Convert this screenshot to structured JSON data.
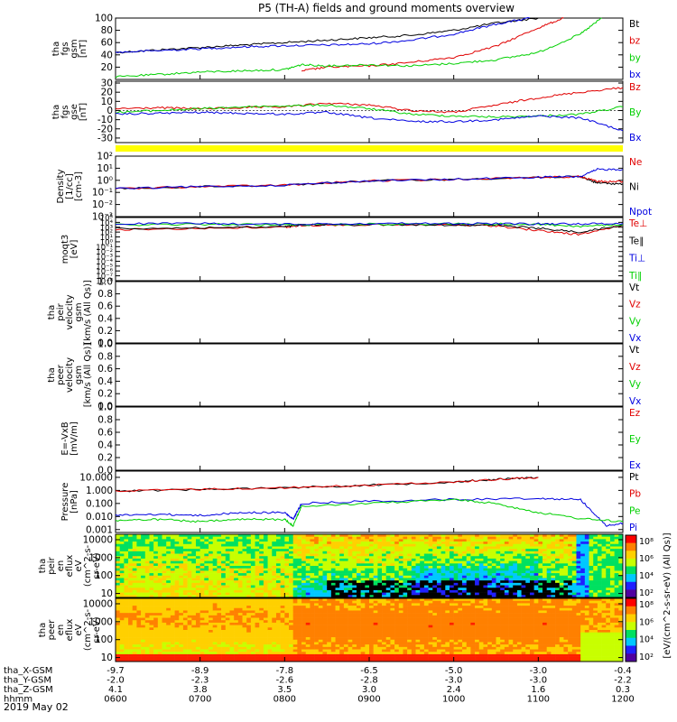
{
  "title": "P5 (TH-A) fields and ground moments overview",
  "date_label": "2019 May 02",
  "colors": {
    "black": "#000000",
    "red": "#e00000",
    "green": "#00d000",
    "blue": "#0000e0",
    "yellow": "#ffff00"
  },
  "chart_data": [
    {
      "type": "line",
      "id": "fgs_btot",
      "ylabel": [
        "tha",
        "fgs",
        "gsm",
        "[nT]"
      ],
      "ylim": [
        0,
        100
      ],
      "yticks": [
        20,
        40,
        60,
        80,
        100
      ],
      "yticklabels": [
        "20",
        "40",
        "60",
        "80",
        "100"
      ],
      "legend": [
        {
          "name": "Bt",
          "color": "#000000"
        },
        {
          "name": "bz",
          "color": "#e00000"
        },
        {
          "name": "by",
          "color": "#00d000"
        },
        {
          "name": "bx",
          "color": "#0000e0"
        }
      ],
      "series": [
        {
          "name": "Bt",
          "color": "#000000",
          "x": [
            6.0,
            6.5,
            7.0,
            7.5,
            8.0,
            8.5,
            9.0,
            9.5,
            10.0,
            10.5,
            11.0
          ],
          "y": [
            44,
            48,
            52,
            56,
            60,
            64,
            68,
            72,
            80,
            92,
            100
          ]
        },
        {
          "name": "bx",
          "color": "#0000e0",
          "x": [
            6.0,
            6.5,
            7.0,
            7.5,
            8.0,
            8.5,
            9.0,
            9.5,
            10.0,
            10.5,
            10.9
          ],
          "y": [
            44,
            47,
            50,
            53,
            55,
            56,
            58,
            64,
            74,
            90,
            100
          ]
        },
        {
          "name": "bz",
          "color": "#e00000",
          "x": [
            8.2,
            8.5,
            9.0,
            9.5,
            10.0,
            10.5,
            11.0,
            11.3
          ],
          "y": [
            14,
            20,
            22,
            28,
            36,
            54,
            84,
            100
          ]
        },
        {
          "name": "by",
          "color": "#00d000",
          "x": [
            6.0,
            6.5,
            7.0,
            7.5,
            8.0,
            8.2,
            8.5,
            9.0,
            9.5,
            10.0,
            10.5,
            11.0,
            11.5,
            11.75
          ],
          "y": [
            4,
            8,
            12,
            14,
            16,
            24,
            22,
            24,
            22,
            26,
            32,
            44,
            74,
            100
          ]
        }
      ]
    },
    {
      "type": "line",
      "id": "fgs_gse",
      "ylabel": [
        "tha",
        "fgs",
        "gse",
        "[nT]"
      ],
      "ylim": [
        -35,
        32
      ],
      "yticks": [
        -30,
        -20,
        -10,
        0,
        10,
        20,
        30
      ],
      "yticklabels": [
        "-30",
        "-20",
        "-10",
        "0",
        "10",
        "20",
        "30"
      ],
      "legend": [
        {
          "name": "Bz",
          "color": "#e00000"
        },
        {
          "name": "By",
          "color": "#00d000"
        },
        {
          "name": "Bx",
          "color": "#0000e0"
        }
      ],
      "series": [
        {
          "name": "Bz",
          "color": "#e00000",
          "x": [
            6.0,
            6.5,
            7.0,
            7.5,
            8.0,
            8.5,
            9.0,
            9.5,
            10.0,
            10.5,
            11.0,
            11.5,
            12.0
          ],
          "y": [
            2,
            3,
            2,
            3,
            4,
            8,
            6,
            0,
            -2,
            6,
            14,
            20,
            25
          ]
        },
        {
          "name": "By",
          "color": "#00d000",
          "x": [
            6.0,
            6.5,
            7.0,
            7.5,
            8.0,
            8.5,
            9.0,
            9.5,
            10.0,
            10.5,
            11.0,
            11.5,
            12.0
          ],
          "y": [
            -2,
            0,
            2,
            4,
            5,
            6,
            2,
            -4,
            -6,
            -7,
            -6,
            -4,
            4
          ]
        },
        {
          "name": "Bx",
          "color": "#0000e0",
          "x": [
            6.0,
            6.5,
            7.0,
            7.5,
            8.0,
            8.5,
            9.0,
            9.5,
            10.0,
            10.5,
            11.0,
            11.5,
            12.0
          ],
          "y": [
            -4,
            -3,
            -2,
            -3,
            -4,
            -2,
            -8,
            -12,
            -12,
            -10,
            -6,
            -8,
            -22
          ]
        }
      ]
    },
    {
      "type": "line",
      "id": "density",
      "ylabel": [
        "Density",
        "[1/cc]",
        "[cm-3]"
      ],
      "ylog": true,
      "ylim": [
        0.001,
        100
      ],
      "yticks": [
        0.001,
        0.01,
        0.1,
        1,
        10,
        100
      ],
      "yticklabels": [
        "10⁻³",
        "10⁻²",
        "10⁻¹",
        "10⁰",
        "10¹",
        "10²"
      ],
      "legend": [
        {
          "name": "Ne",
          "color": "#e00000"
        },
        {
          "name": "Ni",
          "color": "#000000"
        },
        {
          "name": "Npot",
          "color": "#0000e0"
        }
      ],
      "series": [
        {
          "name": "Ni",
          "color": "#000000",
          "x": [
            6.0,
            7.0,
            8.0,
            9.0,
            10.0,
            11.0,
            11.5,
            11.7,
            12.0
          ],
          "y": [
            0.2,
            0.3,
            0.4,
            0.9,
            1.2,
            1.8,
            2.0,
            0.6,
            0.5
          ]
        },
        {
          "name": "Ne",
          "color": "#e00000",
          "x": [
            6.0,
            7.0,
            8.0,
            9.0,
            10.0,
            11.0,
            11.5,
            11.7,
            12.0
          ],
          "y": [
            0.2,
            0.3,
            0.4,
            0.9,
            1.2,
            1.8,
            2.0,
            0.8,
            0.8
          ]
        },
        {
          "name": "Npot",
          "color": "#0000e0",
          "x": [
            6.0,
            7.0,
            8.0,
            9.0,
            10.0,
            11.0,
            11.5,
            11.7,
            12.0
          ],
          "y": [
            0.2,
            0.3,
            0.4,
            0.9,
            1.2,
            1.8,
            2.0,
            8.0,
            8.0
          ]
        }
      ]
    },
    {
      "type": "line",
      "id": "temperature",
      "ylabel": [
        "moqt3",
        "[eV]"
      ],
      "ylog": true,
      "ylim": [
        1e-08,
        100000
      ],
      "yticks": [
        1e-08,
        1e-07,
        1e-06,
        1e-05,
        0.0001,
        0.001,
        0.01,
        0.1,
        1,
        10,
        100,
        1000,
        10000,
        100000
      ],
      "yticklabels": [
        "10⁻⁸",
        "10⁻⁷",
        "10⁻⁶",
        "10⁻⁵",
        "10⁻⁴",
        "10⁻³",
        "10⁻²",
        "10⁻¹",
        "10⁰",
        "10¹",
        "10²",
        "10³",
        "10⁴",
        "10⁵"
      ],
      "legend": [
        {
          "name": "Te⊥",
          "color": "#e00000"
        },
        {
          "name": "Te∥",
          "color": "#000000"
        },
        {
          "name": "Ti⊥",
          "color": "#0000e0"
        },
        {
          "name": "Ti∥",
          "color": "#00d000"
        }
      ],
      "series": [
        {
          "name": "Te⊥",
          "color": "#e00000",
          "x": [
            6.0,
            7.0,
            8.0,
            8.2,
            9.0,
            10.0,
            10.5,
            11.0,
            11.5,
            12.0
          ],
          "y": [
            300,
            600,
            1000,
            2500,
            3000,
            2800,
            2000,
            200,
            30,
            3000
          ]
        },
        {
          "name": "Te∥",
          "color": "#000000",
          "x": [
            6.0,
            7.0,
            8.0,
            8.2,
            9.0,
            10.0,
            10.5,
            11.0,
            11.5,
            12.0
          ],
          "y": [
            500,
            800,
            1200,
            3000,
            3500,
            3000,
            2500,
            600,
            100,
            3000
          ]
        },
        {
          "name": "Ti∥",
          "color": "#00d000",
          "x": [
            6.0,
            7.0,
            8.0,
            9.0,
            10.0,
            11.0,
            11.5,
            12.0
          ],
          "y": [
            3000,
            4000,
            3000,
            4500,
            5000,
            4000,
            1500,
            3000
          ]
        },
        {
          "name": "Ti⊥",
          "color": "#0000e0",
          "x": [
            6.0,
            7.0,
            8.0,
            9.0,
            10.0,
            11.0,
            11.5,
            12.0
          ],
          "y": [
            5000,
            6000,
            4000,
            6000,
            5500,
            5000,
            5000,
            6000
          ]
        }
      ]
    },
    {
      "type": "line",
      "id": "peir_velocity",
      "ylabel": [
        "tha",
        "peir",
        "velocity",
        "gsm",
        "[km/s (All Qs)]"
      ],
      "ylim": [
        0,
        1
      ],
      "yticks": [
        0,
        0.2,
        0.4,
        0.6,
        0.8,
        1.0
      ],
      "yticklabels": [
        "0.0",
        "0.2",
        "0.4",
        "0.6",
        "0.8",
        "1.0"
      ],
      "legend": [
        {
          "name": "Vt",
          "color": "#000000"
        },
        {
          "name": "Vz",
          "color": "#e00000"
        },
        {
          "name": "Vy",
          "color": "#00d000"
        },
        {
          "name": "Vx",
          "color": "#0000e0"
        }
      ],
      "series": []
    },
    {
      "type": "line",
      "id": "peer_velocity",
      "ylabel": [
        "tha",
        "peer",
        "velocity",
        "gsm",
        "[km/s (All Qs)]"
      ],
      "ylim": [
        0,
        1
      ],
      "yticks": [
        0,
        0.2,
        0.4,
        0.6,
        0.8,
        1.0
      ],
      "yticklabels": [
        "0.0",
        "0.2",
        "0.4",
        "0.6",
        "0.8",
        "1.0"
      ],
      "legend": [
        {
          "name": "Vt",
          "color": "#000000"
        },
        {
          "name": "Vz",
          "color": "#e00000"
        },
        {
          "name": "Vy",
          "color": "#00d000"
        },
        {
          "name": "Vx",
          "color": "#0000e0"
        }
      ],
      "series": []
    },
    {
      "type": "line",
      "id": "efield",
      "ylabel": [
        "E=-VxB",
        "[mV/m]"
      ],
      "ylim": [
        0,
        1
      ],
      "yticks": [
        0,
        0.2,
        0.4,
        0.6,
        0.8,
        1.0
      ],
      "yticklabels": [
        "0.0",
        "0.2",
        "0.4",
        "0.6",
        "0.8",
        "1.0"
      ],
      "legend": [
        {
          "name": "Ez",
          "color": "#e00000"
        },
        {
          "name": "Ey",
          "color": "#00d000"
        },
        {
          "name": "Ex",
          "color": "#0000e0"
        }
      ],
      "series": []
    },
    {
      "type": "line",
      "id": "pressure",
      "ylabel": [
        "Pressure",
        "[nPa]"
      ],
      "ylog": true,
      "ylim": [
        0.0006,
        30
      ],
      "yticks": [
        0.001,
        0.01,
        0.1,
        1,
        10
      ],
      "yticklabels": [
        "0.001",
        "0.010",
        "0.100",
        "1.000",
        "10.000"
      ],
      "legend": [
        {
          "name": "Pt",
          "color": "#000000"
        },
        {
          "name": "Pb",
          "color": "#e00000"
        },
        {
          "name": "Pe",
          "color": "#00d000"
        },
        {
          "name": "Pi",
          "color": "#0000e0"
        }
      ],
      "series": [
        {
          "name": "Pt",
          "color": "#000000",
          "x": [
            6.0,
            7.0,
            8.0,
            9.0,
            10.0,
            10.5,
            11.0
          ],
          "y": [
            0.9,
            1.2,
            1.6,
            2.5,
            4.5,
            7,
            10
          ]
        },
        {
          "name": "Pb",
          "color": "#e00000",
          "x": [
            6.0,
            7.0,
            8.0,
            9.0,
            10.0,
            10.5,
            11.0
          ],
          "y": [
            0.9,
            1.2,
            1.6,
            2.5,
            4.5,
            7,
            10
          ]
        },
        {
          "name": "Pi",
          "color": "#0000e0",
          "x": [
            6.0,
            6.5,
            7.0,
            7.5,
            8.0,
            8.1,
            8.2,
            9.0,
            10.0,
            11.0,
            11.5,
            11.8,
            12.0
          ],
          "y": [
            0.012,
            0.015,
            0.012,
            0.02,
            0.02,
            0.006,
            0.1,
            0.15,
            0.2,
            0.25,
            0.2,
            0.002,
            0.003
          ]
        },
        {
          "name": "Pe",
          "color": "#00d000",
          "x": [
            6.0,
            6.5,
            7.0,
            7.5,
            8.0,
            8.1,
            8.2,
            9.0,
            10.0,
            10.5,
            11.0,
            11.5,
            12.0
          ],
          "y": [
            0.005,
            0.006,
            0.004,
            0.006,
            0.006,
            0.002,
            0.06,
            0.1,
            0.2,
            0.1,
            0.02,
            0.007,
            0.004
          ]
        }
      ]
    },
    {
      "type": "heatmap",
      "id": "peir_eflux",
      "ylabel": [
        "tha",
        "peir",
        "en",
        "eflux",
        "eV",
        "(cm^2-s-",
        "sr-eV)"
      ],
      "ylog": true,
      "ylim": [
        6,
        20000
      ],
      "yticks": [
        10,
        100,
        1000,
        10000
      ],
      "yticklabels": [
        "10",
        "100",
        "1000",
        "10000"
      ]
    },
    {
      "type": "heatmap",
      "id": "peer_eflux",
      "ylabel": [
        "tha",
        "peer",
        "en",
        "eflux",
        "eV",
        "(cm^2-s-",
        "sr-eV)"
      ],
      "ylog": true,
      "ylim": [
        6,
        20000
      ],
      "yticks": [
        10,
        100,
        1000,
        10000
      ],
      "yticklabels": [
        "10",
        "100",
        "1000",
        "10000"
      ]
    }
  ],
  "colorbar": {
    "label": "[eV/(cm^2-s-sr-eV) (All Qs)]",
    "ticklabels": [
      "10²",
      "10⁴",
      "10⁶",
      "10⁸"
    ],
    "ticklabels2": [
      "10²",
      "10⁴",
      "10⁶",
      "10⁸"
    ]
  },
  "xaxis": {
    "xlim": [
      6,
      12
    ],
    "ticks": [
      6,
      7,
      8,
      9,
      10,
      11,
      12
    ],
    "rows": [
      {
        "label": "tha_X-GSM",
        "values": [
          "-9.7",
          "-8.9",
          "-7.8",
          "-6.5",
          "-5.0",
          "-3.0",
          "-0.4"
        ]
      },
      {
        "label": "tha_Y-GSM",
        "values": [
          "-2.0",
          "-2.3",
          "-2.6",
          "-2.8",
          "-3.0",
          "-3.0",
          "-2.2"
        ]
      },
      {
        "label": "tha_Z-GSM",
        "values": [
          "4.1",
          "3.8",
          "3.5",
          "3.0",
          "2.4",
          "1.6",
          "0.3"
        ]
      },
      {
        "label": "hhmm",
        "values": [
          "0600",
          "0700",
          "0800",
          "0900",
          "1000",
          "1100",
          "1200"
        ]
      }
    ]
  }
}
